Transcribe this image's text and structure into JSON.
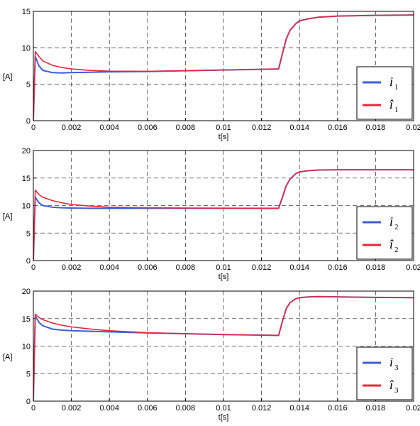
{
  "chart_data": [
    {
      "type": "line",
      "xlabel": "t[s]",
      "ylabel": "[A]",
      "xlim": [
        0,
        0.02
      ],
      "ylim": [
        0,
        15
      ],
      "xticks": [
        "0",
        "0.002",
        "0.004",
        "0.006",
        "0.008",
        "0.01",
        "0.012",
        "0.014",
        "0.016",
        "0.018",
        "0.02"
      ],
      "yticks": [
        "0",
        "5",
        "10",
        "15"
      ],
      "grid": true,
      "legend_position": "bottom-right",
      "series": [
        {
          "name": "i1",
          "legend_symbol": "i",
          "legend_subscript": "1",
          "color": "#3a5fdc",
          "x": [
            0,
            0.0001,
            0.0003,
            0.0005,
            0.001,
            0.0015,
            0.002,
            0.003,
            0.004,
            0.006,
            0.008,
            0.01,
            0.012,
            0.0129,
            0.0131,
            0.0133,
            0.0135,
            0.0138,
            0.014,
            0.0145,
            0.015,
            0.016,
            0.018,
            0.02
          ],
          "y": [
            0,
            8.8,
            7.5,
            6.9,
            6.6,
            6.55,
            6.6,
            6.65,
            6.7,
            6.75,
            6.85,
            6.95,
            7.05,
            7.1,
            9.2,
            11.2,
            12.4,
            13.3,
            13.7,
            14.0,
            14.2,
            14.35,
            14.45,
            14.5
          ]
        },
        {
          "name": "i1 estimate",
          "legend_symbol": "î",
          "legend_subscript": "1",
          "color": "#e8283c",
          "x": [
            0,
            0.0001,
            0.0003,
            0.0005,
            0.001,
            0.0015,
            0.002,
            0.003,
            0.004,
            0.006,
            0.008,
            0.01,
            0.012,
            0.0129,
            0.0131,
            0.0133,
            0.0135,
            0.0138,
            0.014,
            0.0145,
            0.015,
            0.016,
            0.018,
            0.02
          ],
          "y": [
            0,
            9.5,
            8.8,
            8.2,
            7.6,
            7.3,
            7.1,
            6.9,
            6.8,
            6.78,
            6.86,
            6.96,
            7.05,
            7.1,
            9.2,
            11.2,
            12.4,
            13.3,
            13.7,
            14.0,
            14.2,
            14.35,
            14.45,
            14.5
          ]
        }
      ]
    },
    {
      "type": "line",
      "xlabel": "t[s]",
      "ylabel": "[A]",
      "xlim": [
        0,
        0.02
      ],
      "ylim": [
        0,
        20
      ],
      "xticks": [
        "0",
        "0.002",
        "0.004",
        "0.006",
        "0.008",
        "0.01",
        "0.012",
        "0.014",
        "0.016",
        "0.018",
        "0.02"
      ],
      "yticks": [
        "0",
        "5",
        "10",
        "15",
        "20"
      ],
      "grid": true,
      "legend_position": "bottom-right",
      "series": [
        {
          "name": "i2",
          "legend_symbol": "i",
          "legend_subscript": "2",
          "color": "#3a5fdc",
          "x": [
            0,
            0.0001,
            0.0003,
            0.0005,
            0.001,
            0.0015,
            0.002,
            0.003,
            0.004,
            0.006,
            0.008,
            0.01,
            0.012,
            0.0129,
            0.0131,
            0.0133,
            0.0135,
            0.0138,
            0.014,
            0.0145,
            0.015,
            0.016,
            0.018,
            0.02
          ],
          "y": [
            0,
            11.5,
            10.5,
            10.0,
            9.7,
            9.6,
            9.55,
            9.5,
            9.5,
            9.5,
            9.5,
            9.5,
            9.5,
            9.5,
            11.5,
            13.6,
            14.8,
            15.8,
            16.1,
            16.35,
            16.45,
            16.5,
            16.5,
            16.5
          ]
        },
        {
          "name": "i2 estimate",
          "legend_symbol": "î",
          "legend_subscript": "2",
          "color": "#e8283c",
          "x": [
            0,
            0.0001,
            0.0003,
            0.0005,
            0.001,
            0.0015,
            0.002,
            0.003,
            0.004,
            0.006,
            0.008,
            0.01,
            0.012,
            0.0129,
            0.0131,
            0.0133,
            0.0135,
            0.0138,
            0.014,
            0.0145,
            0.015,
            0.016,
            0.018,
            0.02
          ],
          "y": [
            0,
            12.8,
            12.0,
            11.5,
            10.9,
            10.5,
            10.2,
            9.9,
            9.7,
            9.6,
            9.55,
            9.52,
            9.5,
            9.5,
            11.5,
            13.6,
            14.8,
            15.8,
            16.1,
            16.35,
            16.45,
            16.5,
            16.5,
            16.5
          ]
        }
      ]
    },
    {
      "type": "line",
      "xlabel": "t[s]",
      "ylabel": "[A]",
      "xlim": [
        0,
        0.02
      ],
      "ylim": [
        0,
        20
      ],
      "xticks": [
        "0",
        "0.002",
        "0.004",
        "0.006",
        "0.008",
        "0.01",
        "0.012",
        "0.014",
        "0.016",
        "0.018",
        "0.02"
      ],
      "yticks": [
        "0",
        "5",
        "10",
        "15",
        "20"
      ],
      "grid": true,
      "legend_position": "bottom-right",
      "series": [
        {
          "name": "i3",
          "legend_symbol": "i",
          "legend_subscript": "3",
          "color": "#3a5fdc",
          "x": [
            0,
            0.0001,
            0.0003,
            0.0005,
            0.001,
            0.0015,
            0.002,
            0.003,
            0.004,
            0.006,
            0.008,
            0.01,
            0.012,
            0.0129,
            0.0131,
            0.0133,
            0.0135,
            0.0138,
            0.014,
            0.0145,
            0.015,
            0.016,
            0.018,
            0.02
          ],
          "y": [
            0,
            15.5,
            14.3,
            13.7,
            13.1,
            12.9,
            12.8,
            12.7,
            12.6,
            12.4,
            12.25,
            12.1,
            12.0,
            11.95,
            14.5,
            16.8,
            17.9,
            18.6,
            18.8,
            18.95,
            19.0,
            18.95,
            18.85,
            18.8
          ]
        },
        {
          "name": "i3 estimate",
          "legend_symbol": "î",
          "legend_subscript": "3",
          "color": "#e8283c",
          "x": [
            0,
            0.0001,
            0.0003,
            0.0005,
            0.001,
            0.0015,
            0.002,
            0.003,
            0.004,
            0.006,
            0.008,
            0.01,
            0.012,
            0.0129,
            0.0131,
            0.0133,
            0.0135,
            0.0138,
            0.014,
            0.0145,
            0.015,
            0.016,
            0.018,
            0.02
          ],
          "y": [
            0,
            15.8,
            15.2,
            14.8,
            14.2,
            13.8,
            13.5,
            13.1,
            12.8,
            12.45,
            12.25,
            12.1,
            12.0,
            11.95,
            14.5,
            16.8,
            17.9,
            18.6,
            18.8,
            18.95,
            19.0,
            18.95,
            18.85,
            18.8
          ]
        }
      ]
    }
  ]
}
